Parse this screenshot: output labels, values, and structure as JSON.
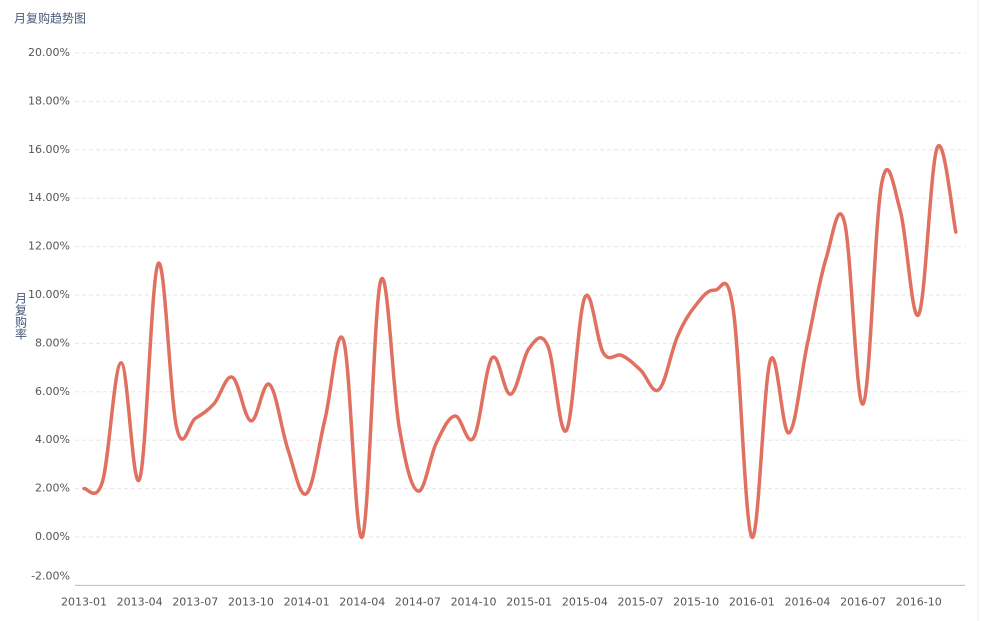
{
  "chart_data": {
    "type": "line",
    "title": "月复购趋势图",
    "y_label": "月复购率",
    "categories": [
      "2013-01",
      null,
      null,
      "2013-04",
      null,
      null,
      "2013-07",
      null,
      null,
      "2013-10",
      null,
      null,
      "2014-01",
      null,
      null,
      "2014-04",
      null,
      null,
      "2014-07",
      null,
      null,
      "2014-10",
      null,
      null,
      "2015-01",
      null,
      null,
      "2015-04",
      null,
      null,
      "2015-07",
      null,
      null,
      "2015-10",
      null,
      null,
      "2016-01",
      null,
      null,
      "2016-04",
      null,
      null,
      "2016-07",
      null,
      null,
      "2016-10",
      null,
      null
    ],
    "series": [
      {
        "color": "#e07060",
        "values": [
          2.0,
          2.3,
          7.2,
          2.4,
          11.3,
          4.5,
          4.9,
          5.5,
          6.6,
          4.8,
          6.3,
          3.6,
          1.8,
          4.9,
          8.1,
          0.0,
          10.6,
          4.5,
          1.9,
          3.9,
          5.0,
          4.1,
          7.4,
          5.9,
          7.8,
          7.9,
          4.4,
          9.9,
          7.6,
          7.5,
          6.9,
          6.1,
          8.3,
          9.6,
          10.2,
          9.4,
          0.0,
          7.3,
          4.3,
          8.0,
          11.5,
          13.0,
          5.5,
          14.6,
          13.5,
          9.2,
          16.1,
          12.6
        ]
      }
    ],
    "ylim": [
      -2,
      20
    ],
    "yticks": [
      {
        "value": -2,
        "label": "-2.00%"
      },
      {
        "value": 0,
        "label": "0.00%"
      },
      {
        "value": 2,
        "label": "2.00%"
      },
      {
        "value": 4,
        "label": "4.00%"
      },
      {
        "value": 6,
        "label": "6.00%"
      },
      {
        "value": 8,
        "label": "8.00%"
      },
      {
        "value": 10,
        "label": "10.00%"
      },
      {
        "value": 12,
        "label": "12.00%"
      },
      {
        "value": 14,
        "label": "14.00%"
      },
      {
        "value": 16,
        "label": "16.00%"
      },
      {
        "value": 18,
        "label": "18.00%"
      },
      {
        "value": 20,
        "label": "20.00%"
      }
    ],
    "grid": true
  }
}
